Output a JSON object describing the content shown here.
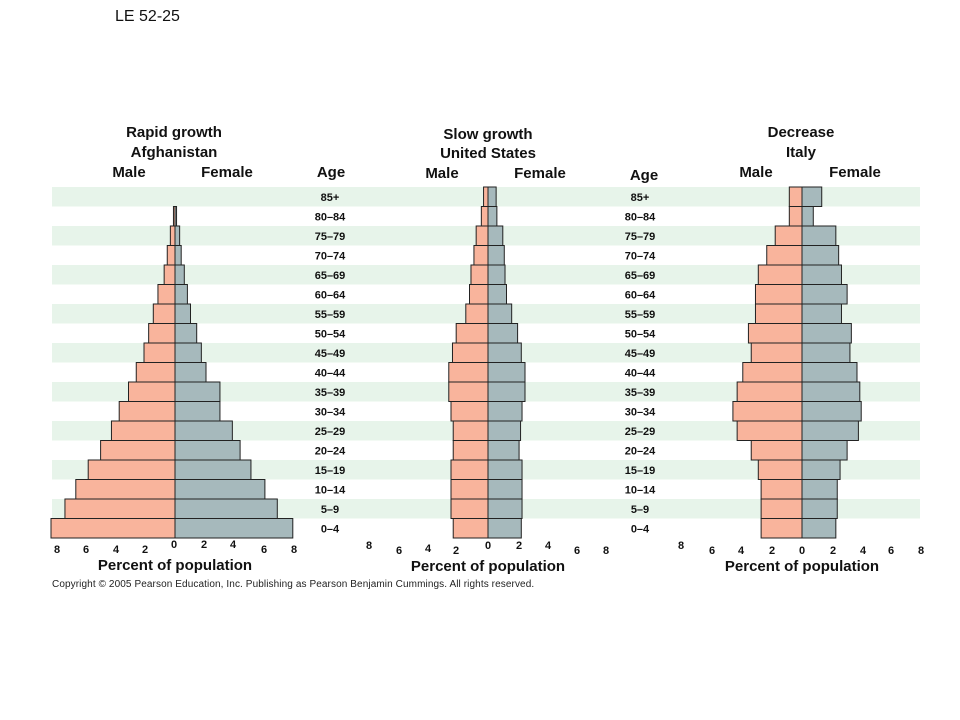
{
  "slide_label": "LE 52-25",
  "copyright": "Copyright © 2005 Pearson Education, Inc. Publishing as Pearson Benjamin Cummings. All rights reserved.",
  "colors": {
    "male": "#f9b49c",
    "female": "#a6b9bc",
    "band": "#e7f4ea",
    "stroke": "#222222"
  },
  "chart_data": [
    {
      "type": "bar",
      "orientation": "horizontal-population-pyramid",
      "title_lines": [
        "Rapid growth",
        "Afghanistan"
      ],
      "male_label": "Male",
      "female_label": "Female",
      "age_heading": "Age",
      "xlabel": "Percent of population",
      "xlim": [
        -8,
        8
      ],
      "x_tick_labels": [
        "8",
        "6",
        "4",
        "2",
        "0",
        "2",
        "4",
        "6",
        "8"
      ],
      "categories": [
        "85+",
        "80–84",
        "75–79",
        "70–74",
        "65–69",
        "60–64",
        "55–59",
        "50–54",
        "45–49",
        "40–44",
        "35–39",
        "30–34",
        "25–29",
        "20–24",
        "15–19",
        "10–14",
        "5–9",
        "0–4"
      ],
      "series": [
        {
          "name": "Male",
          "values": [
            0,
            0.1,
            0.3,
            0.5,
            0.7,
            1.1,
            1.4,
            1.7,
            2.0,
            2.5,
            3.0,
            3.6,
            4.1,
            4.8,
            5.6,
            6.4,
            7.1,
            8.0
          ]
        },
        {
          "name": "Female",
          "values": [
            0,
            0.1,
            0.3,
            0.4,
            0.6,
            0.8,
            1.0,
            1.4,
            1.7,
            2.0,
            2.9,
            2.9,
            3.7,
            4.2,
            4.9,
            5.8,
            6.6,
            7.6
          ]
        }
      ]
    },
    {
      "type": "bar",
      "orientation": "horizontal-population-pyramid",
      "title_lines": [
        "Slow growth",
        "United States"
      ],
      "male_label": "Male",
      "female_label": "Female",
      "age_heading": "Age",
      "xlabel": "Percent of population",
      "xlim": [
        -8,
        8
      ],
      "x_tick_labels": [
        "8",
        "6",
        "4",
        "2",
        "0",
        "2",
        "4",
        "6",
        "8"
      ],
      "categories": [
        "85+",
        "80–84",
        "75–79",
        "70–74",
        "65–69",
        "60–64",
        "55–59",
        "50–54",
        "45–49",
        "40–44",
        "35–39",
        "30–34",
        "25–29",
        "20–24",
        "15–19",
        "10–14",
        "5–9",
        "0–4"
      ],
      "series": [
        {
          "name": "Male",
          "values": [
            0.6,
            0.9,
            1.6,
            1.9,
            2.3,
            2.5,
            3.0,
            4.3,
            4.8,
            5.3,
            5.3,
            5.0,
            4.7,
            4.7,
            5.0,
            5.0,
            5.0,
            4.7
          ]
        },
        {
          "name": "Female",
          "values": [
            1.1,
            1.2,
            2.0,
            2.2,
            2.3,
            2.5,
            3.2,
            4.0,
            4.5,
            5.0,
            5.0,
            4.6,
            4.4,
            4.2,
            4.6,
            4.6,
            4.6,
            4.5
          ]
        }
      ]
    },
    {
      "type": "bar",
      "orientation": "horizontal-population-pyramid",
      "title_lines": [
        "Decrease",
        "Italy"
      ],
      "male_label": "Male",
      "female_label": "Female",
      "age_heading": "",
      "xlabel": "Percent of population",
      "xlim": [
        -8,
        8
      ],
      "x_tick_labels": [
        "8",
        "6",
        "4",
        "2",
        "0",
        "2",
        "4",
        "6",
        "8"
      ],
      "categories": [
        "85+",
        "80–84",
        "75–79",
        "70–74",
        "65–69",
        "60–64",
        "55–59",
        "50–54",
        "45–49",
        "40–44",
        "35–39",
        "30–34",
        "25–29",
        "20–24",
        "15–19",
        "10–14",
        "5–9",
        "0–4"
      ],
      "series": [
        {
          "name": "Male",
          "values": [
            0.9,
            0.9,
            1.9,
            2.5,
            3.1,
            3.3,
            3.3,
            3.8,
            3.6,
            4.2,
            4.6,
            4.9,
            4.6,
            3.6,
            3.1,
            2.9,
            2.9,
            2.9
          ]
        },
        {
          "name": "Female",
          "values": [
            1.4,
            0.8,
            2.4,
            2.6,
            2.8,
            3.2,
            2.8,
            3.5,
            3.4,
            3.9,
            4.1,
            4.2,
            4.0,
            3.2,
            2.7,
            2.5,
            2.5,
            2.4
          ]
        }
      ]
    }
  ]
}
